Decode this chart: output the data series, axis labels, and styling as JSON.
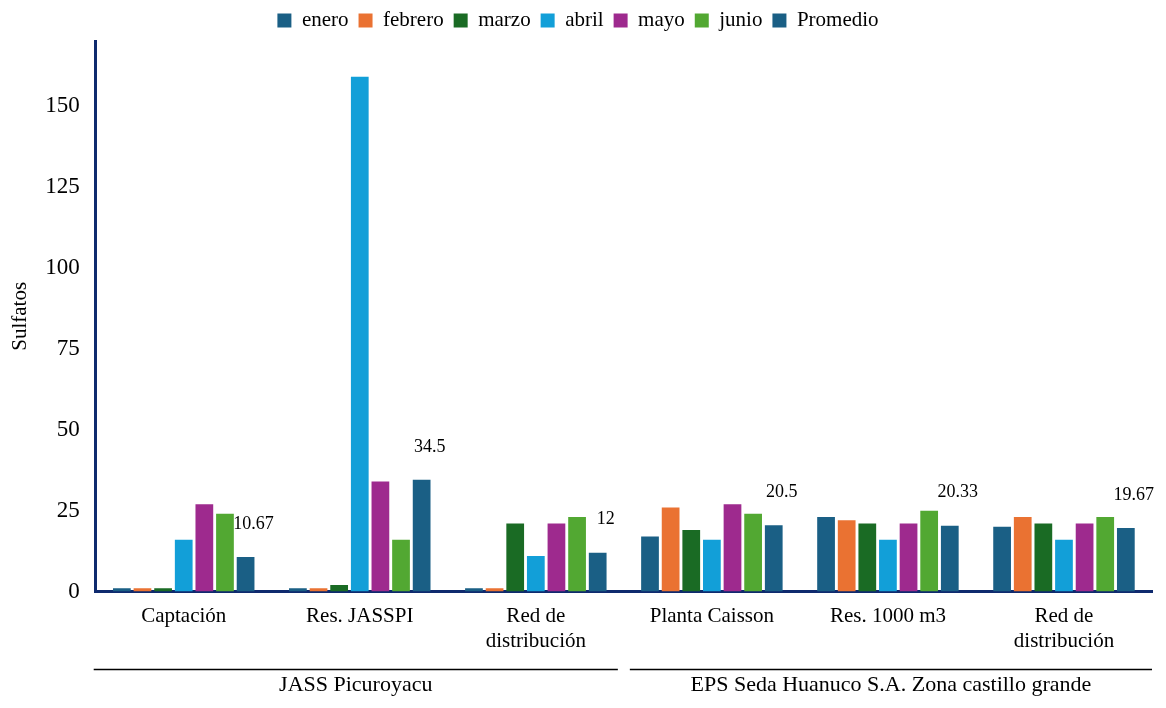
{
  "chart_data": {
    "type": "bar",
    "ylabel": "Sulfatos",
    "categories": [
      "Captación",
      "Res. JASSPI",
      "Red de distribución",
      "Planta Caisson",
      "Res. 1000 m3",
      "Red de distribución"
    ],
    "series": [
      {
        "name": "enero",
        "color": "#1a5f85",
        "values": [
          1,
          1,
          1,
          17,
          23,
          20
        ]
      },
      {
        "name": "febrero",
        "color": "#ea7232",
        "values": [
          1,
          1,
          1,
          26,
          22,
          23
        ]
      },
      {
        "name": "marzo",
        "color": "#1a6b24",
        "values": [
          1,
          2,
          21,
          19,
          21,
          21
        ]
      },
      {
        "name": "abril",
        "color": "#129fd8",
        "values": [
          16,
          159,
          11,
          16,
          16,
          16
        ]
      },
      {
        "name": "mayo",
        "color": "#9e2a8e",
        "values": [
          27,
          34,
          21,
          27,
          21,
          21
        ]
      },
      {
        "name": "junio",
        "color": "#52a832",
        "values": [
          24,
          16,
          23,
          24,
          25,
          23
        ]
      },
      {
        "name": "Promedio",
        "color": "#1a5f85",
        "values": [
          10.67,
          34.5,
          12,
          20.5,
          20.33,
          19.67
        ],
        "value_labels": [
          "10.67",
          "34.5",
          "12",
          "20.5",
          "20.33",
          "19.67"
        ]
      }
    ],
    "ylim": [
      0,
      170
    ],
    "yticks": [
      0,
      25,
      50,
      75,
      100,
      125,
      150
    ],
    "grid": false,
    "legend": "top",
    "annotations": [
      "JASS Picuroyacu",
      "EPS Seda Huanuco S.A. Zona castillo grande"
    ]
  }
}
